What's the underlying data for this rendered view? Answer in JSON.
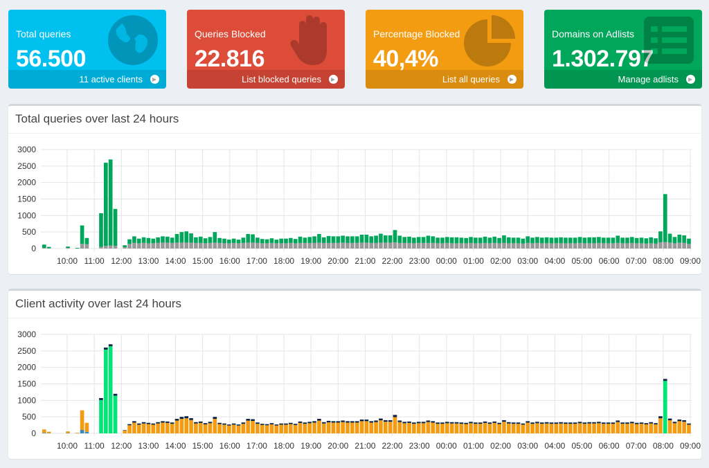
{
  "tiles": [
    {
      "title": "Total queries",
      "value": "56.500",
      "footer": "11 active clients",
      "color": "#00c0ef",
      "icon": "globe-icon"
    },
    {
      "title": "Queries Blocked",
      "value": "22.816",
      "footer": "List blocked queries",
      "color": "#dd4b39",
      "icon": "hand-icon"
    },
    {
      "title": "Percentage Blocked",
      "value": "40,4%",
      "footer": "List all queries",
      "color": "#f39c12",
      "icon": "pie-chart-icon"
    },
    {
      "title": "Domains on Adlists",
      "value": "1.302.797",
      "footer": "Manage adlists",
      "color": "#00a65a",
      "icon": "list-icon"
    }
  ],
  "panels": {
    "queries_title": "Total queries over last 24 hours",
    "clients_title": "Client activity over last 24 hours"
  },
  "chart_data": [
    {
      "type": "bar",
      "stacked": true,
      "ylim": [
        0,
        3000
      ],
      "yticks": [
        0,
        500,
        1000,
        1500,
        2000,
        2500,
        3000
      ],
      "xticks": [
        "10:00",
        "11:00",
        "12:00",
        "13:00",
        "14:00",
        "15:00",
        "16:00",
        "17:00",
        "18:00",
        "19:00",
        "20:00",
        "21:00",
        "22:00",
        "23:00",
        "00:00",
        "01:00",
        "02:00",
        "03:00",
        "04:00",
        "05:00",
        "06:00",
        "07:00",
        "08:00",
        "09:00"
      ],
      "grid": true,
      "colors": {
        "permitted": "#00a65a",
        "blocked": "#999999"
      },
      "totals": [
        120,
        50,
        0,
        0,
        0,
        60,
        0,
        20,
        700,
        320,
        0,
        0,
        1070,
        2600,
        2700,
        1200,
        0,
        100,
        280,
        370,
        300,
        340,
        320,
        300,
        340,
        370,
        360,
        330,
        440,
        500,
        520,
        460,
        340,
        360,
        310,
        350,
        500,
        320,
        300,
        270,
        300,
        270,
        330,
        440,
        430,
        330,
        290,
        280,
        310,
        270,
        300,
        300,
        320,
        290,
        360,
        330,
        350,
        370,
        440,
        340,
        380,
        370,
        370,
        390,
        370,
        370,
        370,
        420,
        420,
        370,
        390,
        450,
        400,
        400,
        560,
        390,
        350,
        360,
        330,
        350,
        350,
        390,
        370,
        330,
        330,
        350,
        340,
        340,
        330,
        320,
        350,
        330,
        330,
        360,
        330,
        360,
        320,
        400,
        340,
        330,
        330,
        300,
        370,
        330,
        350,
        330,
        340,
        330,
        330,
        340,
        330,
        330,
        330,
        350,
        330,
        340,
        340,
        350,
        330,
        330,
        330,
        390,
        330,
        330,
        350,
        320,
        330,
        310,
        340,
        310,
        520,
        1650,
        450,
        350,
        420,
        400,
        300
      ],
      "blocked": [
        20,
        10,
        0,
        0,
        0,
        20,
        0,
        0,
        140,
        130,
        0,
        0,
        50,
        80,
        90,
        80,
        0,
        40,
        140,
        170,
        160,
        170,
        160,
        160,
        170,
        180,
        180,
        170,
        180,
        180,
        180,
        180,
        170,
        170,
        160,
        170,
        180,
        170,
        160,
        160,
        170,
        160,
        170,
        180,
        180,
        170,
        160,
        160,
        170,
        160,
        160,
        160,
        170,
        160,
        170,
        170,
        170,
        170,
        180,
        170,
        170,
        170,
        170,
        180,
        170,
        170,
        170,
        180,
        180,
        170,
        170,
        180,
        180,
        180,
        190,
        170,
        170,
        170,
        160,
        170,
        170,
        170,
        170,
        160,
        160,
        170,
        160,
        160,
        160,
        160,
        170,
        160,
        160,
        170,
        160,
        170,
        160,
        170,
        160,
        160,
        160,
        150,
        170,
        160,
        170,
        160,
        160,
        160,
        160,
        160,
        160,
        160,
        160,
        170,
        160,
        160,
        160,
        170,
        160,
        160,
        160,
        170,
        160,
        160,
        170,
        160,
        160,
        150,
        160,
        150,
        190,
        200,
        180,
        160,
        180,
        170,
        140
      ]
    },
    {
      "type": "bar",
      "stacked": true,
      "ylim": [
        0,
        3000
      ],
      "yticks": [
        0,
        500,
        1000,
        1500,
        2000,
        2500,
        3000
      ],
      "xticks": [
        "10:00",
        "11:00",
        "12:00",
        "13:00",
        "14:00",
        "15:00",
        "16:00",
        "17:00",
        "18:00",
        "19:00",
        "20:00",
        "21:00",
        "22:00",
        "23:00",
        "00:00",
        "01:00",
        "02:00",
        "03:00",
        "04:00",
        "05:00",
        "06:00",
        "07:00",
        "08:00",
        "09:00"
      ],
      "grid": true,
      "colors": {
        "main_client": "#f39c12",
        "secondary_client": "#00e676",
        "other_client": "#0b2545",
        "misc_client": "#3c8dbc"
      }
    }
  ]
}
